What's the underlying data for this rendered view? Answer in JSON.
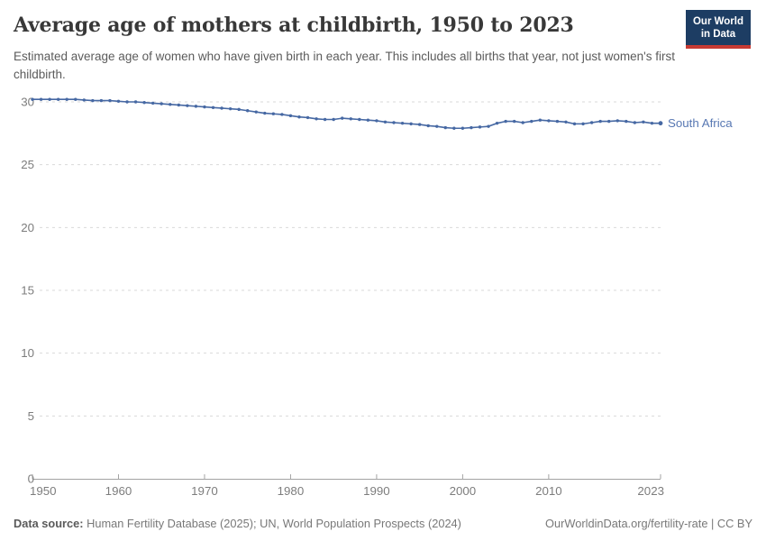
{
  "header": {
    "title": "Average age of mothers at childbirth, 1950 to 2023",
    "subtitle": "Estimated average age of women who have given birth in each year. This includes all births that year, not just women's first childbirth.",
    "logo": {
      "line1": "Our World",
      "line2": "in Data"
    }
  },
  "footer": {
    "datasource_label": "Data source:",
    "datasource_text": " Human Fertility Database (2025); UN, World Population Prospects (2024)",
    "link_text": "OurWorldinData.org/fertility-rate | CC BY"
  },
  "colors": {
    "line": "#4668a3",
    "series_label": "#5878b3",
    "grid": "#dadada",
    "axis": "#a3a3a3",
    "tick_label": "#7d7d7d",
    "logo_bg": "#1d3d63",
    "logo_bar": "#c73a33"
  },
  "chart_data": {
    "type": "line",
    "title": "Average age of mothers at childbirth, 1950 to 2023",
    "xlabel": "",
    "ylabel": "",
    "ylim": [
      0,
      30.5
    ],
    "xlim": [
      1950,
      2023
    ],
    "grid": "horizontal-dashed",
    "legend_position": "end-of-line",
    "y_ticks": [
      0,
      5,
      10,
      15,
      20,
      25,
      30
    ],
    "x_ticks": [
      1950,
      1960,
      1970,
      1980,
      1990,
      2000,
      2010,
      2023
    ],
    "x": [
      1950,
      1951,
      1952,
      1953,
      1954,
      1955,
      1956,
      1957,
      1958,
      1959,
      1960,
      1961,
      1962,
      1963,
      1964,
      1965,
      1966,
      1967,
      1968,
      1969,
      1970,
      1971,
      1972,
      1973,
      1974,
      1975,
      1976,
      1977,
      1978,
      1979,
      1980,
      1981,
      1982,
      1983,
      1984,
      1985,
      1986,
      1987,
      1988,
      1989,
      1990,
      1991,
      1992,
      1993,
      1994,
      1995,
      1996,
      1997,
      1998,
      1999,
      2000,
      2001,
      2002,
      2003,
      2004,
      2005,
      2006,
      2007,
      2008,
      2009,
      2010,
      2011,
      2012,
      2013,
      2014,
      2015,
      2016,
      2017,
      2018,
      2019,
      2020,
      2021,
      2022,
      2023
    ],
    "series": [
      {
        "name": "South Africa",
        "values": [
          30.2,
          30.2,
          30.2,
          30.2,
          30.2,
          30.2,
          30.15,
          30.1,
          30.1,
          30.1,
          30.05,
          30.0,
          30.0,
          29.95,
          29.9,
          29.85,
          29.8,
          29.75,
          29.7,
          29.65,
          29.6,
          29.55,
          29.5,
          29.45,
          29.4,
          29.3,
          29.2,
          29.1,
          29.05,
          29.0,
          28.9,
          28.8,
          28.75,
          28.65,
          28.6,
          28.6,
          28.7,
          28.65,
          28.6,
          28.55,
          28.5,
          28.4,
          28.35,
          28.3,
          28.25,
          28.2,
          28.1,
          28.05,
          27.95,
          27.9,
          27.9,
          27.95,
          28.0,
          28.05,
          28.3,
          28.45,
          28.45,
          28.35,
          28.45,
          28.55,
          28.5,
          28.45,
          28.4,
          28.25,
          28.25,
          28.35,
          28.45,
          28.45,
          28.5,
          28.45,
          28.35,
          28.4,
          28.3,
          28.3
        ]
      }
    ]
  }
}
